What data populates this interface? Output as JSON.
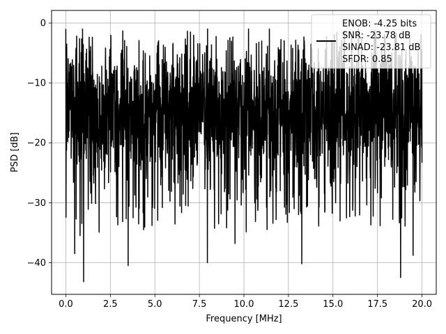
{
  "chart_data": {
    "type": "line",
    "title": "",
    "xlabel": "Frequency [MHz]",
    "ylabel": "PSD [dB]",
    "xlim": [
      -0.8,
      20.8
    ],
    "ylim": [
      -45.3,
      2.1
    ],
    "xticks": [
      0.0,
      2.5,
      5.0,
      7.5,
      10.0,
      12.5,
      15.0,
      17.5,
      20.0
    ],
    "xtick_labels": [
      "0.0",
      "2.5",
      "5.0",
      "7.5",
      "10.0",
      "12.5",
      "15.0",
      "17.5",
      "20.0"
    ],
    "yticks": [
      0,
      -10,
      -20,
      -30,
      -40
    ],
    "ytick_labels": [
      "0",
      "−10",
      "−20",
      "−30",
      "−40"
    ],
    "grid": true,
    "legend": {
      "placement": "top-right",
      "entries": [
        "ENOB: -4.25 bits",
        "SNR: -23.78 dB",
        "SINAD: -23.81 dB",
        "SFDR: 0.85"
      ]
    },
    "series": [
      {
        "color": "#000000",
        "x_range": [
          0.0,
          20.0
        ],
        "x_step": 0.01,
        "y_summary": {
          "baseline_db": -15.0,
          "typical_range_db": [
            -25.0,
            -5.0
          ],
          "min_db": -43.0,
          "max_db": -1.0
        },
        "notable_points": [
          {
            "x": 0.0,
            "y": -1.0
          },
          {
            "x": 1.0,
            "y": -43.2
          },
          {
            "x": 0.5,
            "y": -38.5
          },
          {
            "x": 0.8,
            "y": -35.5
          },
          {
            "x": 3.5,
            "y": -40.5
          },
          {
            "x": 7.0,
            "y": -1.5
          },
          {
            "x": 7.95,
            "y": -40.0
          },
          {
            "x": 9.5,
            "y": -36.8
          },
          {
            "x": 13.25,
            "y": -40.2
          },
          {
            "x": 11.3,
            "y": -34.5
          },
          {
            "x": 18.8,
            "y": -42.5
          },
          {
            "x": 19.5,
            "y": -38.8
          },
          {
            "x": 11.0,
            "y": -3.0
          },
          {
            "x": 18.3,
            "y": -5.0
          }
        ]
      }
    ]
  }
}
